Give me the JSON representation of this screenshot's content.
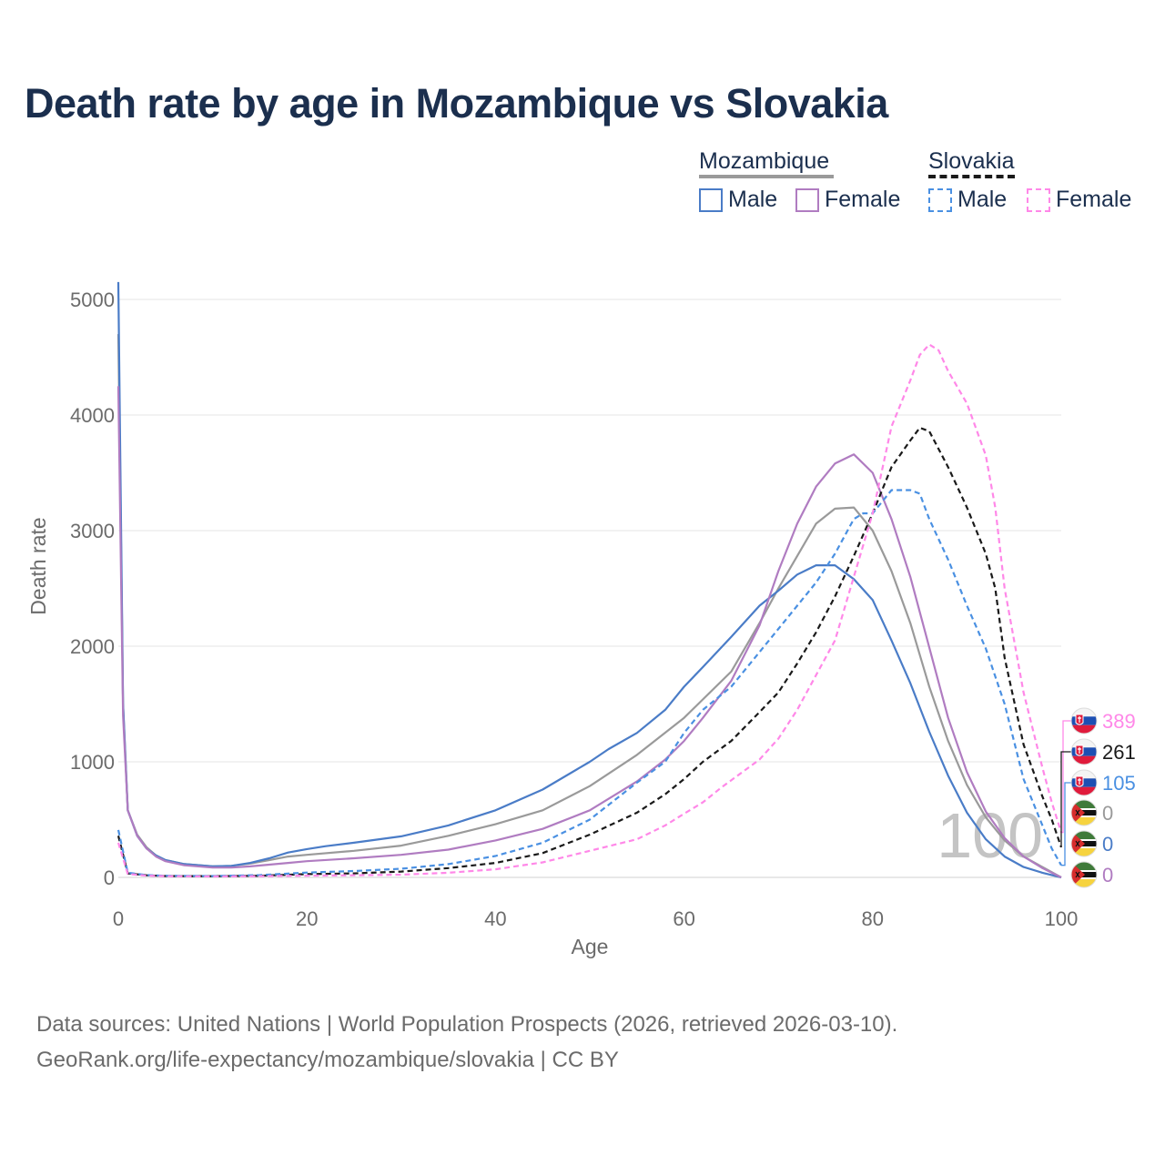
{
  "title": "Death rate by age in Mozambique vs Slovakia",
  "legend": {
    "groups": [
      {
        "name": "Mozambique",
        "rule_color": "#9a9a9a",
        "rule_style": "solid",
        "items": [
          {
            "label": "Male",
            "color": "#4a7cc7",
            "style": "solid"
          },
          {
            "label": "Female",
            "color": "#b07cc1",
            "style": "solid"
          }
        ]
      },
      {
        "name": "Slovakia",
        "rule_color": "#1a1a1a",
        "rule_style": "dashed",
        "items": [
          {
            "label": "Male",
            "color": "#4a90e2",
            "style": "dashed"
          },
          {
            "label": "Female",
            "color": "#ff88e8",
            "style": "dashed"
          }
        ]
      }
    ]
  },
  "footer": {
    "line1": "Data sources: United Nations | World Population Prospects (2026, retrieved 2026-03-10).",
    "line2": "GeoRank.org/life-expectancy/mozambique/slovakia | CC BY"
  },
  "watermark": "100",
  "end_labels": [
    {
      "value": "389",
      "color": "#ff88e8",
      "flag": "flag-slovakia-icon",
      "series": "Slovakia Female"
    },
    {
      "value": "261",
      "color": "#1a1a1a",
      "flag": "flag-slovakia-icon",
      "series": "Slovakia Total"
    },
    {
      "value": "105",
      "color": "#4a90e2",
      "flag": "flag-slovakia-icon",
      "series": "Slovakia Male"
    },
    {
      "value": "0",
      "color": "#9a9a9a",
      "flag": "flag-mozambique-icon",
      "series": "Mozambique Total"
    },
    {
      "value": "0",
      "color": "#4a7cc7",
      "flag": "flag-mozambique-icon",
      "series": "Mozambique Male"
    },
    {
      "value": "0",
      "color": "#b07cc1",
      "flag": "flag-mozambique-icon",
      "series": "Mozambique Female"
    }
  ],
  "chart_data": {
    "type": "line",
    "title": "Death rate by age in Mozambique vs Slovakia",
    "xlabel": "Age",
    "ylabel": "Death rate",
    "xlim": [
      0,
      100
    ],
    "ylim": [
      0,
      5000
    ],
    "xticks": [
      0,
      20,
      40,
      60,
      80,
      100
    ],
    "yticks": [
      0,
      1000,
      2000,
      3000,
      4000,
      5000
    ],
    "grid": true,
    "series": [
      {
        "name": "Mozambique Total",
        "color": "#9a9a9a",
        "dash": "solid",
        "points": [
          [
            0,
            4700
          ],
          [
            0.5,
            1500
          ],
          [
            1,
            580
          ],
          [
            2,
            370
          ],
          [
            3,
            260
          ],
          [
            4,
            190
          ],
          [
            5,
            150
          ],
          [
            7,
            115
          ],
          [
            10,
            95
          ],
          [
            12,
            100
          ],
          [
            14,
            120
          ],
          [
            16,
            150
          ],
          [
            18,
            180
          ],
          [
            20,
            195
          ],
          [
            25,
            230
          ],
          [
            30,
            275
          ],
          [
            35,
            360
          ],
          [
            40,
            460
          ],
          [
            45,
            580
          ],
          [
            50,
            790
          ],
          [
            55,
            1060
          ],
          [
            60,
            1380
          ],
          [
            62,
            1540
          ],
          [
            65,
            1780
          ],
          [
            68,
            2200
          ],
          [
            70,
            2500
          ],
          [
            72,
            2780
          ],
          [
            74,
            3060
          ],
          [
            76,
            3190
          ],
          [
            78,
            3200
          ],
          [
            80,
            3000
          ],
          [
            82,
            2650
          ],
          [
            84,
            2200
          ],
          [
            86,
            1650
          ],
          [
            88,
            1180
          ],
          [
            90,
            800
          ],
          [
            92,
            520
          ],
          [
            94,
            320
          ],
          [
            96,
            180
          ],
          [
            98,
            90
          ],
          [
            100,
            0
          ]
        ]
      },
      {
        "name": "Mozambique Male",
        "color": "#4a7cc7",
        "dash": "solid",
        "points": [
          [
            0,
            5150
          ],
          [
            0.5,
            1500
          ],
          [
            1,
            580
          ],
          [
            2,
            360
          ],
          [
            3,
            250
          ],
          [
            4,
            190
          ],
          [
            5,
            150
          ],
          [
            7,
            115
          ],
          [
            10,
            95
          ],
          [
            12,
            100
          ],
          [
            14,
            125
          ],
          [
            16,
            165
          ],
          [
            18,
            215
          ],
          [
            20,
            245
          ],
          [
            22,
            270
          ],
          [
            25,
            300
          ],
          [
            30,
            355
          ],
          [
            35,
            450
          ],
          [
            40,
            580
          ],
          [
            45,
            760
          ],
          [
            50,
            1000
          ],
          [
            52,
            1110
          ],
          [
            55,
            1250
          ],
          [
            58,
            1450
          ],
          [
            60,
            1650
          ],
          [
            62,
            1820
          ],
          [
            65,
            2080
          ],
          [
            68,
            2350
          ],
          [
            70,
            2480
          ],
          [
            72,
            2620
          ],
          [
            74,
            2700
          ],
          [
            76,
            2700
          ],
          [
            78,
            2580
          ],
          [
            80,
            2400
          ],
          [
            82,
            2050
          ],
          [
            84,
            1680
          ],
          [
            86,
            1260
          ],
          [
            88,
            880
          ],
          [
            90,
            560
          ],
          [
            92,
            330
          ],
          [
            94,
            180
          ],
          [
            96,
            90
          ],
          [
            98,
            40
          ],
          [
            100,
            0
          ]
        ]
      },
      {
        "name": "Mozambique Female",
        "color": "#b07cc1",
        "dash": "solid",
        "points": [
          [
            0,
            4250
          ],
          [
            0.5,
            1400
          ],
          [
            1,
            580
          ],
          [
            2,
            360
          ],
          [
            3,
            250
          ],
          [
            4,
            180
          ],
          [
            5,
            140
          ],
          [
            7,
            105
          ],
          [
            10,
            85
          ],
          [
            12,
            85
          ],
          [
            14,
            95
          ],
          [
            16,
            110
          ],
          [
            18,
            125
          ],
          [
            20,
            140
          ],
          [
            25,
            165
          ],
          [
            30,
            195
          ],
          [
            35,
            240
          ],
          [
            40,
            320
          ],
          [
            45,
            420
          ],
          [
            50,
            580
          ],
          [
            55,
            830
          ],
          [
            58,
            1020
          ],
          [
            60,
            1180
          ],
          [
            62,
            1380
          ],
          [
            65,
            1700
          ],
          [
            68,
            2180
          ],
          [
            70,
            2650
          ],
          [
            72,
            3060
          ],
          [
            74,
            3380
          ],
          [
            76,
            3580
          ],
          [
            78,
            3660
          ],
          [
            80,
            3500
          ],
          [
            82,
            3100
          ],
          [
            84,
            2600
          ],
          [
            86,
            1990
          ],
          [
            88,
            1380
          ],
          [
            90,
            910
          ],
          [
            92,
            570
          ],
          [
            94,
            340
          ],
          [
            96,
            180
          ],
          [
            98,
            80
          ],
          [
            100,
            0
          ]
        ]
      },
      {
        "name": "Slovakia Total",
        "color": "#1a1a1a",
        "dash": "dashed",
        "points": [
          [
            0,
            360
          ],
          [
            1,
            35
          ],
          [
            3,
            18
          ],
          [
            5,
            12
          ],
          [
            10,
            10
          ],
          [
            15,
            14
          ],
          [
            20,
            28
          ],
          [
            25,
            35
          ],
          [
            30,
            50
          ],
          [
            35,
            80
          ],
          [
            40,
            125
          ],
          [
            45,
            210
          ],
          [
            50,
            370
          ],
          [
            55,
            560
          ],
          [
            58,
            720
          ],
          [
            60,
            850
          ],
          [
            62,
            1000
          ],
          [
            65,
            1180
          ],
          [
            68,
            1430
          ],
          [
            70,
            1600
          ],
          [
            72,
            1850
          ],
          [
            74,
            2120
          ],
          [
            76,
            2430
          ],
          [
            78,
            2780
          ],
          [
            80,
            3150
          ],
          [
            82,
            3550
          ],
          [
            84,
            3780
          ],
          [
            85,
            3890
          ],
          [
            86,
            3860
          ],
          [
            88,
            3550
          ],
          [
            90,
            3200
          ],
          [
            92,
            2800
          ],
          [
            93,
            2500
          ],
          [
            94,
            1900
          ],
          [
            96,
            1150
          ],
          [
            98,
            700
          ],
          [
            99,
            500
          ],
          [
            100,
            261
          ]
        ]
      },
      {
        "name": "Slovakia Male",
        "color": "#4a90e2",
        "dash": "dashed",
        "points": [
          [
            0,
            410
          ],
          [
            1,
            40
          ],
          [
            3,
            20
          ],
          [
            5,
            14
          ],
          [
            10,
            12
          ],
          [
            15,
            20
          ],
          [
            20,
            42
          ],
          [
            25,
            55
          ],
          [
            30,
            75
          ],
          [
            35,
            115
          ],
          [
            40,
            185
          ],
          [
            45,
            300
          ],
          [
            50,
            500
          ],
          [
            55,
            820
          ],
          [
            58,
            1000
          ],
          [
            60,
            1250
          ],
          [
            62,
            1450
          ],
          [
            65,
            1650
          ],
          [
            68,
            1950
          ],
          [
            70,
            2150
          ],
          [
            72,
            2350
          ],
          [
            74,
            2550
          ],
          [
            76,
            2800
          ],
          [
            78,
            3100
          ],
          [
            79,
            3150
          ],
          [
            80,
            3150
          ],
          [
            82,
            3350
          ],
          [
            84,
            3350
          ],
          [
            85,
            3320
          ],
          [
            86,
            3100
          ],
          [
            88,
            2750
          ],
          [
            90,
            2350
          ],
          [
            92,
            1980
          ],
          [
            94,
            1500
          ],
          [
            96,
            850
          ],
          [
            98,
            450
          ],
          [
            99,
            250
          ],
          [
            100,
            105
          ]
        ]
      },
      {
        "name": "Slovakia Female",
        "color": "#ff88e8",
        "dash": "dashed",
        "points": [
          [
            0,
            300
          ],
          [
            1,
            30
          ],
          [
            3,
            15
          ],
          [
            5,
            10
          ],
          [
            10,
            8
          ],
          [
            15,
            10
          ],
          [
            20,
            15
          ],
          [
            25,
            18
          ],
          [
            30,
            24
          ],
          [
            35,
            40
          ],
          [
            40,
            70
          ],
          [
            45,
            130
          ],
          [
            50,
            230
          ],
          [
            55,
            330
          ],
          [
            58,
            450
          ],
          [
            60,
            550
          ],
          [
            62,
            650
          ],
          [
            64,
            780
          ],
          [
            66,
            900
          ],
          [
            68,
            1020
          ],
          [
            70,
            1200
          ],
          [
            72,
            1450
          ],
          [
            74,
            1750
          ],
          [
            76,
            2050
          ],
          [
            78,
            2600
          ],
          [
            80,
            3150
          ],
          [
            82,
            3900
          ],
          [
            84,
            4300
          ],
          [
            85,
            4520
          ],
          [
            86,
            4610
          ],
          [
            87,
            4560
          ],
          [
            88,
            4380
          ],
          [
            90,
            4100
          ],
          [
            92,
            3650
          ],
          [
            93,
            3200
          ],
          [
            94,
            2500
          ],
          [
            96,
            1600
          ],
          [
            98,
            950
          ],
          [
            99,
            650
          ],
          [
            100,
            389
          ]
        ]
      }
    ]
  }
}
